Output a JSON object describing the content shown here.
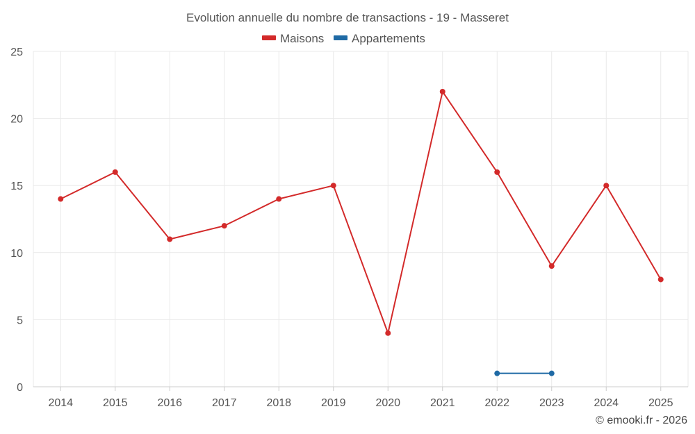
{
  "chart_data": {
    "type": "line",
    "title": "Evolution annuelle du nombre de transactions - 19 - Masseret",
    "categories": [
      "2014",
      "2015",
      "2016",
      "2017",
      "2018",
      "2019",
      "2020",
      "2021",
      "2022",
      "2023",
      "2024",
      "2025"
    ],
    "series": [
      {
        "name": "Maisons",
        "color": "#d32a2a",
        "values": [
          14,
          16,
          11,
          12,
          14,
          15,
          4,
          22,
          16,
          9,
          15,
          8
        ]
      },
      {
        "name": "Appartements",
        "color": "#1f6aa5",
        "values": [
          null,
          null,
          null,
          null,
          null,
          null,
          null,
          null,
          1,
          1,
          null,
          null
        ]
      }
    ],
    "y_ticks": [
      "0",
      "5",
      "10",
      "15",
      "20",
      "25"
    ],
    "ylim": [
      0,
      25
    ],
    "xlabel": "",
    "ylabel": "",
    "grid": true,
    "legend_position": "top-center"
  },
  "credit": "© emooki.fr - 2026"
}
